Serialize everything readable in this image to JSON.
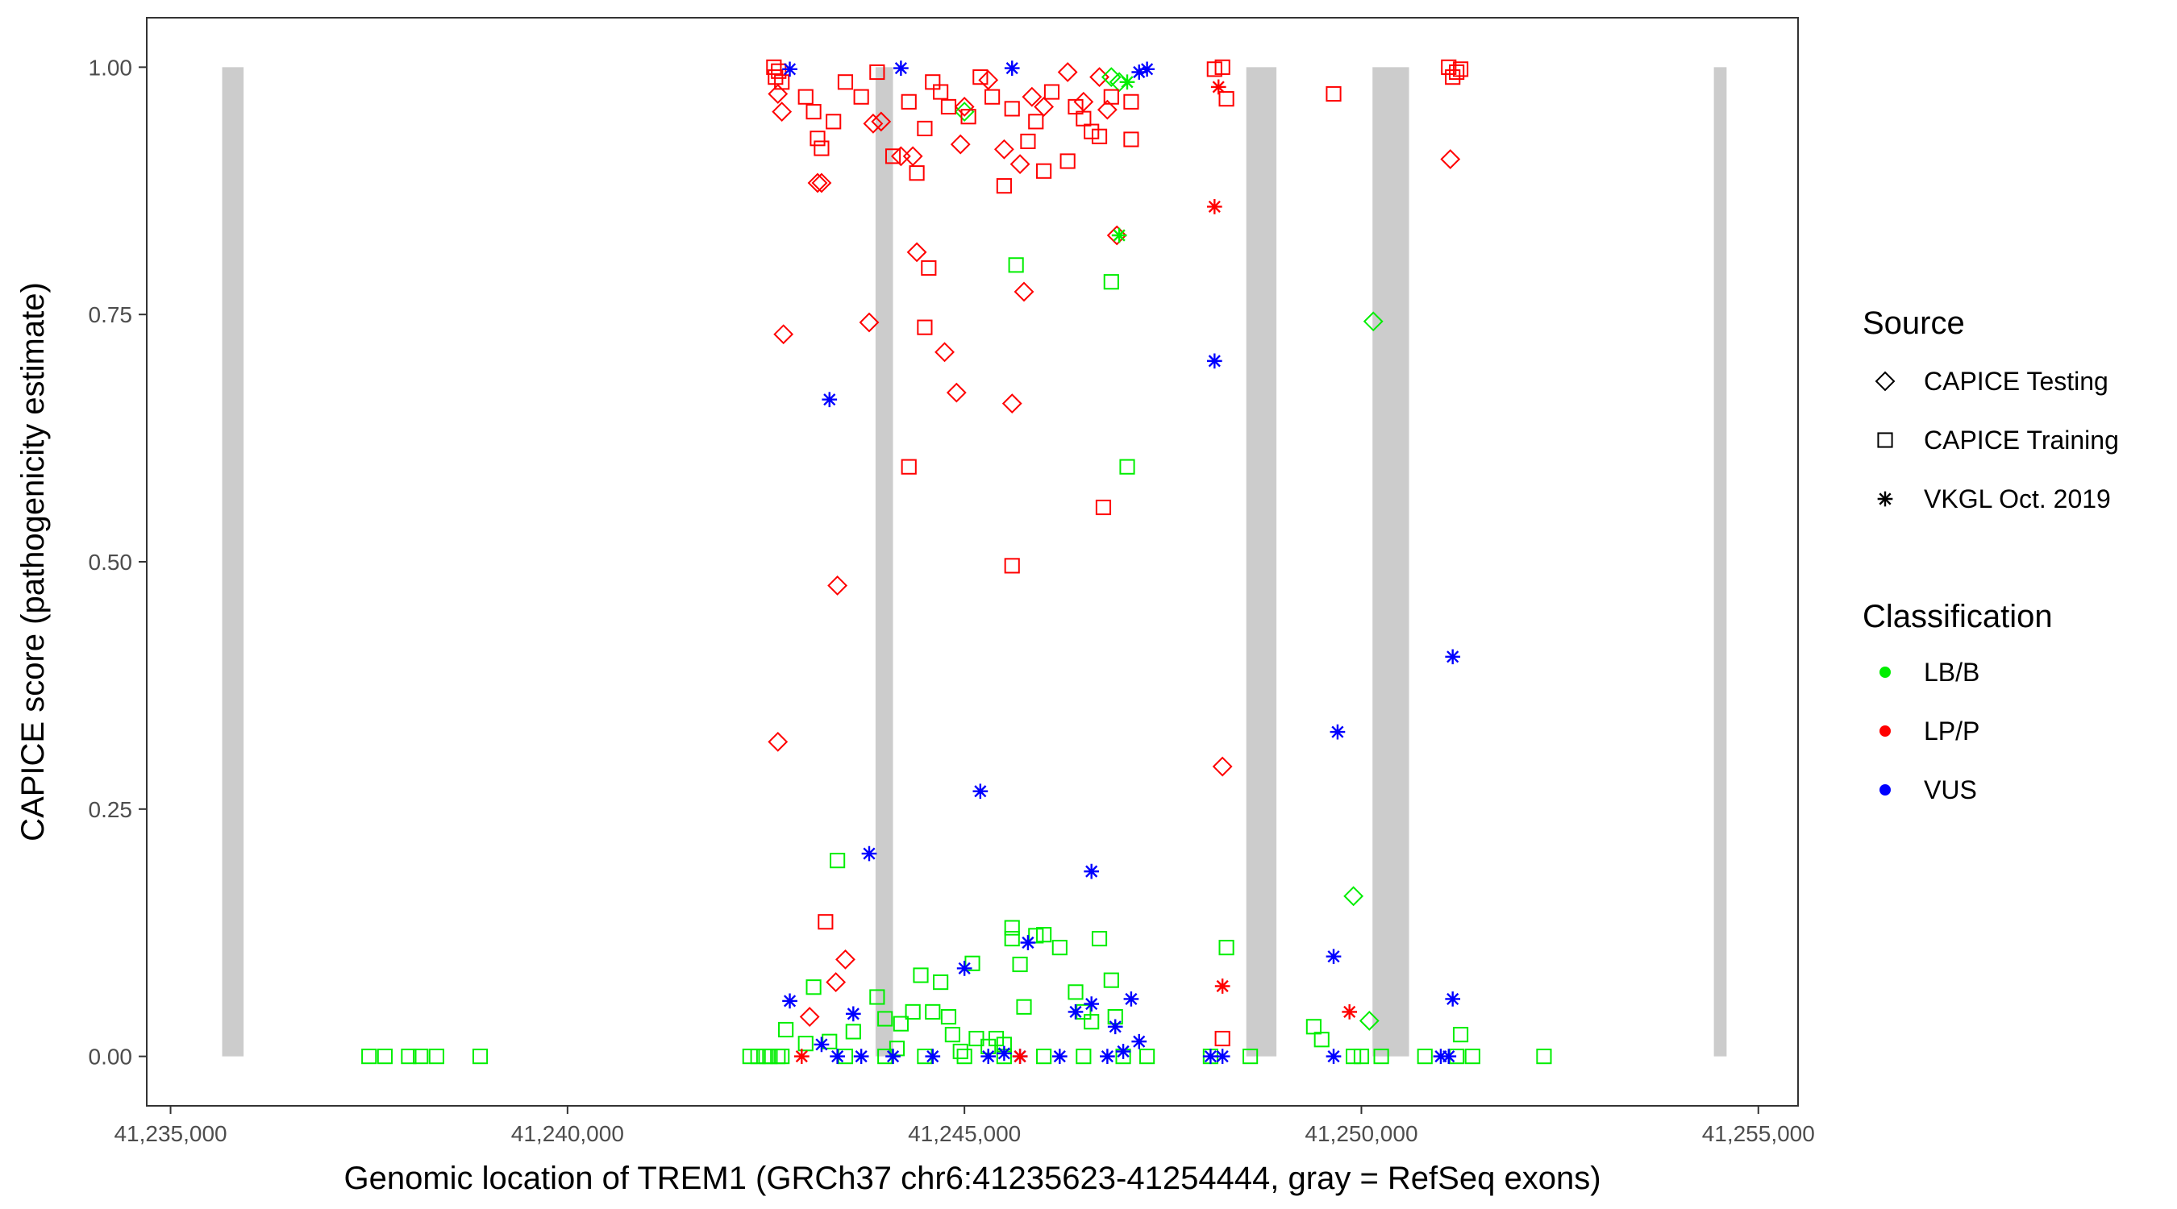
{
  "chart_data": {
    "type": "scatter",
    "xlabel": "Genomic location of TREM1 (GRCh37 chr6:41235623-41254444, gray = RefSeq exons)",
    "ylabel": "CAPICE score (pathogenicity estimate)",
    "xlim": [
      41234700,
      41255500
    ],
    "ylim": [
      -0.05,
      1.05
    ],
    "x_ticks": [
      41235000,
      41240000,
      41245000,
      41250000,
      41255000
    ],
    "x_tick_labels": [
      "41,235,000",
      "41,240,000",
      "41,245,000",
      "41,250,000",
      "41,255,000"
    ],
    "y_ticks": [
      0,
      0.25,
      0.5,
      0.75,
      1.0
    ],
    "y_tick_labels": [
      "0.00",
      "0.25",
      "0.50",
      "0.75",
      "1.00"
    ],
    "grid": false,
    "exons": [
      {
        "start": 41235650,
        "end": 41235920
      },
      {
        "start": 41243880,
        "end": 41244100
      },
      {
        "start": 41248550,
        "end": 41248930
      },
      {
        "start": 41250140,
        "end": 41250600
      },
      {
        "start": 41254440,
        "end": 41254600
      }
    ],
    "exon_color": "#cccccc",
    "colors": {
      "LB/B": "#00ee00",
      "LP/P": "#ff0000",
      "VUS": "#0000ff"
    },
    "legend_position": "right",
    "legend": {
      "source_title": "Source",
      "source_items": [
        {
          "label": "CAPICE Testing",
          "shape": "diamond"
        },
        {
          "label": "CAPICE Training",
          "shape": "square"
        },
        {
          "label": "VKGL Oct. 2019",
          "shape": "asterisk"
        }
      ],
      "class_title": "Classification",
      "class_items": [
        {
          "label": "LB/B",
          "color": "#00ee00"
        },
        {
          "label": "LP/P",
          "color": "#ff0000"
        },
        {
          "label": "VUS",
          "color": "#0000ff"
        }
      ]
    },
    "series": [
      {
        "source": "CAPICE Testing",
        "classification": "LP/P",
        "points": [
          [
            41242650,
            0.973
          ],
          [
            41242700,
            0.955
          ],
          [
            41242720,
            0.73
          ],
          [
            41242650,
            0.318
          ],
          [
            41243150,
            0.883
          ],
          [
            41243200,
            0.883
          ],
          [
            41243400,
            0.476
          ],
          [
            41243500,
            0.098
          ],
          [
            41243380,
            0.075
          ],
          [
            41243050,
            0.04
          ],
          [
            41243800,
            0.742
          ],
          [
            41243850,
            0.943
          ],
          [
            41243950,
            0.945
          ],
          [
            41244200,
            0.91
          ],
          [
            41244350,
            0.91
          ],
          [
            41244400,
            0.813
          ],
          [
            41244750,
            0.712
          ],
          [
            41244900,
            0.671
          ],
          [
            41244950,
            0.922
          ],
          [
            41245000,
            0.96
          ],
          [
            41245300,
            0.987
          ],
          [
            41245500,
            0.917
          ],
          [
            41245700,
            0.902
          ],
          [
            41245750,
            0.773
          ],
          [
            41245600,
            0.66
          ],
          [
            41245850,
            0.97
          ],
          [
            41246000,
            0.96
          ],
          [
            41246300,
            0.995
          ],
          [
            41246500,
            0.965
          ],
          [
            41246700,
            0.99
          ],
          [
            41246800,
            0.957
          ],
          [
            41246920,
            0.83
          ],
          [
            41248250,
            0.293
          ],
          [
            41251120,
            0.907
          ]
        ]
      },
      {
        "source": "CAPICE Testing",
        "classification": "LB/B",
        "points": [
          [
            41246850,
            0.99
          ],
          [
            41246950,
            0.985
          ],
          [
            41245000,
            0.955
          ],
          [
            41250150,
            0.743
          ],
          [
            41249900,
            0.162
          ],
          [
            41250100,
            0.036
          ]
        ]
      },
      {
        "source": "CAPICE Training",
        "classification": "LP/P",
        "points": [
          [
            41242600,
            1.0
          ],
          [
            41242620,
            0.99
          ],
          [
            41242660,
            0.996
          ],
          [
            41242700,
            0.985
          ],
          [
            41243000,
            0.97
          ],
          [
            41243100,
            0.955
          ],
          [
            41243150,
            0.928
          ],
          [
            41243200,
            0.918
          ],
          [
            41243350,
            0.945
          ],
          [
            41243500,
            0.985
          ],
          [
            41243700,
            0.97
          ],
          [
            41243900,
            0.995
          ],
          [
            41244100,
            0.91
          ],
          [
            41244300,
            0.965
          ],
          [
            41244400,
            0.893
          ],
          [
            41244500,
            0.938
          ],
          [
            41244600,
            0.985
          ],
          [
            41244700,
            0.975
          ],
          [
            41244800,
            0.96
          ],
          [
            41245050,
            0.95
          ],
          [
            41245200,
            0.99
          ],
          [
            41245350,
            0.97
          ],
          [
            41245500,
            0.88
          ],
          [
            41245600,
            0.958
          ],
          [
            41245800,
            0.925
          ],
          [
            41245900,
            0.945
          ],
          [
            41246000,
            0.895
          ],
          [
            41246100,
            0.975
          ],
          [
            41246300,
            0.905
          ],
          [
            41246400,
            0.96
          ],
          [
            41246500,
            0.948
          ],
          [
            41246600,
            0.935
          ],
          [
            41246700,
            0.93
          ],
          [
            41246850,
            0.97
          ],
          [
            41247100,
            0.965
          ],
          [
            41247100,
            0.927
          ],
          [
            41244500,
            0.737
          ],
          [
            41244550,
            0.797
          ],
          [
            41244300,
            0.596
          ],
          [
            41246750,
            0.555
          ],
          [
            41245600,
            0.496
          ],
          [
            41243250,
            0.136
          ],
          [
            41248250,
            1.0
          ],
          [
            41248300,
            0.968
          ],
          [
            41248150,
            0.998
          ],
          [
            41248250,
            0.018
          ],
          [
            41249650,
            0.973
          ],
          [
            41251100,
            1.0
          ],
          [
            41251150,
            0.99
          ],
          [
            41251200,
            0.995
          ],
          [
            41251250,
            0.998
          ]
        ]
      },
      {
        "source": "CAPICE Training",
        "classification": "LB/B",
        "points": [
          [
            41237500,
            0
          ],
          [
            41237700,
            0
          ],
          [
            41238000,
            0
          ],
          [
            41238150,
            0
          ],
          [
            41238350,
            0
          ],
          [
            41238900,
            0
          ],
          [
            41242300,
            0
          ],
          [
            41242400,
            0
          ],
          [
            41242500,
            0
          ],
          [
            41242550,
            0
          ],
          [
            41242650,
            0
          ],
          [
            41242700,
            0
          ],
          [
            41242750,
            0.027
          ],
          [
            41243000,
            0.013
          ],
          [
            41243100,
            0.07
          ],
          [
            41243300,
            0.015
          ],
          [
            41243400,
            0.198
          ],
          [
            41243600,
            0.025
          ],
          [
            41243900,
            0.06
          ],
          [
            41244000,
            0.038
          ],
          [
            41244150,
            0.008
          ],
          [
            41244200,
            0.033
          ],
          [
            41244350,
            0.045
          ],
          [
            41244450,
            0.082
          ],
          [
            41244600,
            0.045
          ],
          [
            41244700,
            0.075
          ],
          [
            41244800,
            0.04
          ],
          [
            41244850,
            0.022
          ],
          [
            41244950,
            0.005
          ],
          [
            41245100,
            0.094
          ],
          [
            41245150,
            0.018
          ],
          [
            41245300,
            0.01
          ],
          [
            41245400,
            0.018
          ],
          [
            41245500,
            0.012
          ],
          [
            41245600,
            0.13
          ],
          [
            41245700,
            0.093
          ],
          [
            41245750,
            0.05
          ],
          [
            41245900,
            0.122
          ],
          [
            41246000,
            0.123
          ],
          [
            41246200,
            0.11
          ],
          [
            41246400,
            0.065
          ],
          [
            41246500,
            0.045
          ],
          [
            41246600,
            0.035
          ],
          [
            41246700,
            0.119
          ],
          [
            41246850,
            0.077
          ],
          [
            41246900,
            0.04
          ],
          [
            41245600,
            0.119
          ],
          [
            41245650,
            0.8
          ],
          [
            41246850,
            0.783
          ],
          [
            41247050,
            0.596
          ],
          [
            41247300,
            0
          ],
          [
            41248100,
            0
          ],
          [
            41248300,
            0.11
          ],
          [
            41248600,
            0
          ],
          [
            41249400,
            0.03
          ],
          [
            41249500,
            0.017
          ],
          [
            41250250,
            0
          ],
          [
            41250800,
            0
          ],
          [
            41251200,
            0
          ],
          [
            41251250,
            0.022
          ],
          [
            41251400,
            0
          ],
          [
            41252300,
            0
          ],
          [
            41247000,
            0
          ],
          [
            41246500,
            0
          ],
          [
            41246000,
            0
          ],
          [
            41245500,
            0
          ],
          [
            41245000,
            0
          ],
          [
            41244500,
            0
          ],
          [
            41244000,
            0
          ],
          [
            41243500,
            0
          ],
          [
            41250000,
            0
          ],
          [
            41249900,
            0
          ]
        ]
      },
      {
        "source": "VKGL Oct. 2019",
        "classification": "VUS",
        "points": [
          [
            41242800,
            0.998
          ],
          [
            41243300,
            0.664
          ],
          [
            41242800,
            0.056
          ],
          [
            41243600,
            0.043
          ],
          [
            41243800,
            0.205
          ],
          [
            41244200,
            0.999
          ],
          [
            41245000,
            0.089
          ],
          [
            41245200,
            0.268
          ],
          [
            41245800,
            0.115
          ],
          [
            41245600,
            0.999
          ],
          [
            41246400,
            0.045
          ],
          [
            41246600,
            0.053
          ],
          [
            41246600,
            0.187
          ],
          [
            41246900,
            0.03
          ],
          [
            41247100,
            0.058
          ],
          [
            41247200,
            0.015
          ],
          [
            41247200,
            0.995
          ],
          [
            41247300,
            0.998
          ],
          [
            41248150,
            0.703
          ],
          [
            41248100,
            0
          ],
          [
            41248250,
            0
          ],
          [
            41249700,
            0.328
          ],
          [
            41249650,
            0.101
          ],
          [
            41249650,
            0
          ],
          [
            41251150,
            0.404
          ],
          [
            41251150,
            0.058
          ],
          [
            41251100,
            0
          ],
          [
            41251000,
            0
          ],
          [
            41243400,
            0
          ],
          [
            41243700,
            0
          ],
          [
            41244100,
            0
          ],
          [
            41244600,
            0
          ],
          [
            41245300,
            0
          ],
          [
            41245700,
            0
          ],
          [
            41246200,
            0
          ],
          [
            41246800,
            0
          ],
          [
            41247000,
            0.005
          ],
          [
            41243200,
            0.012
          ],
          [
            41245500,
            0.003
          ]
        ]
      },
      {
        "source": "VKGL Oct. 2019",
        "classification": "LP/P",
        "points": [
          [
            41248150,
            0.859
          ],
          [
            41248200,
            0.98
          ],
          [
            41248250,
            0.071
          ],
          [
            41249850,
            0.045
          ],
          [
            41245700,
            0
          ],
          [
            41242950,
            0
          ]
        ]
      },
      {
        "source": "VKGL Oct. 2019",
        "classification": "LB/B",
        "points": [
          [
            41246950,
            0.83
          ],
          [
            41247050,
            0.985
          ]
        ]
      }
    ]
  }
}
